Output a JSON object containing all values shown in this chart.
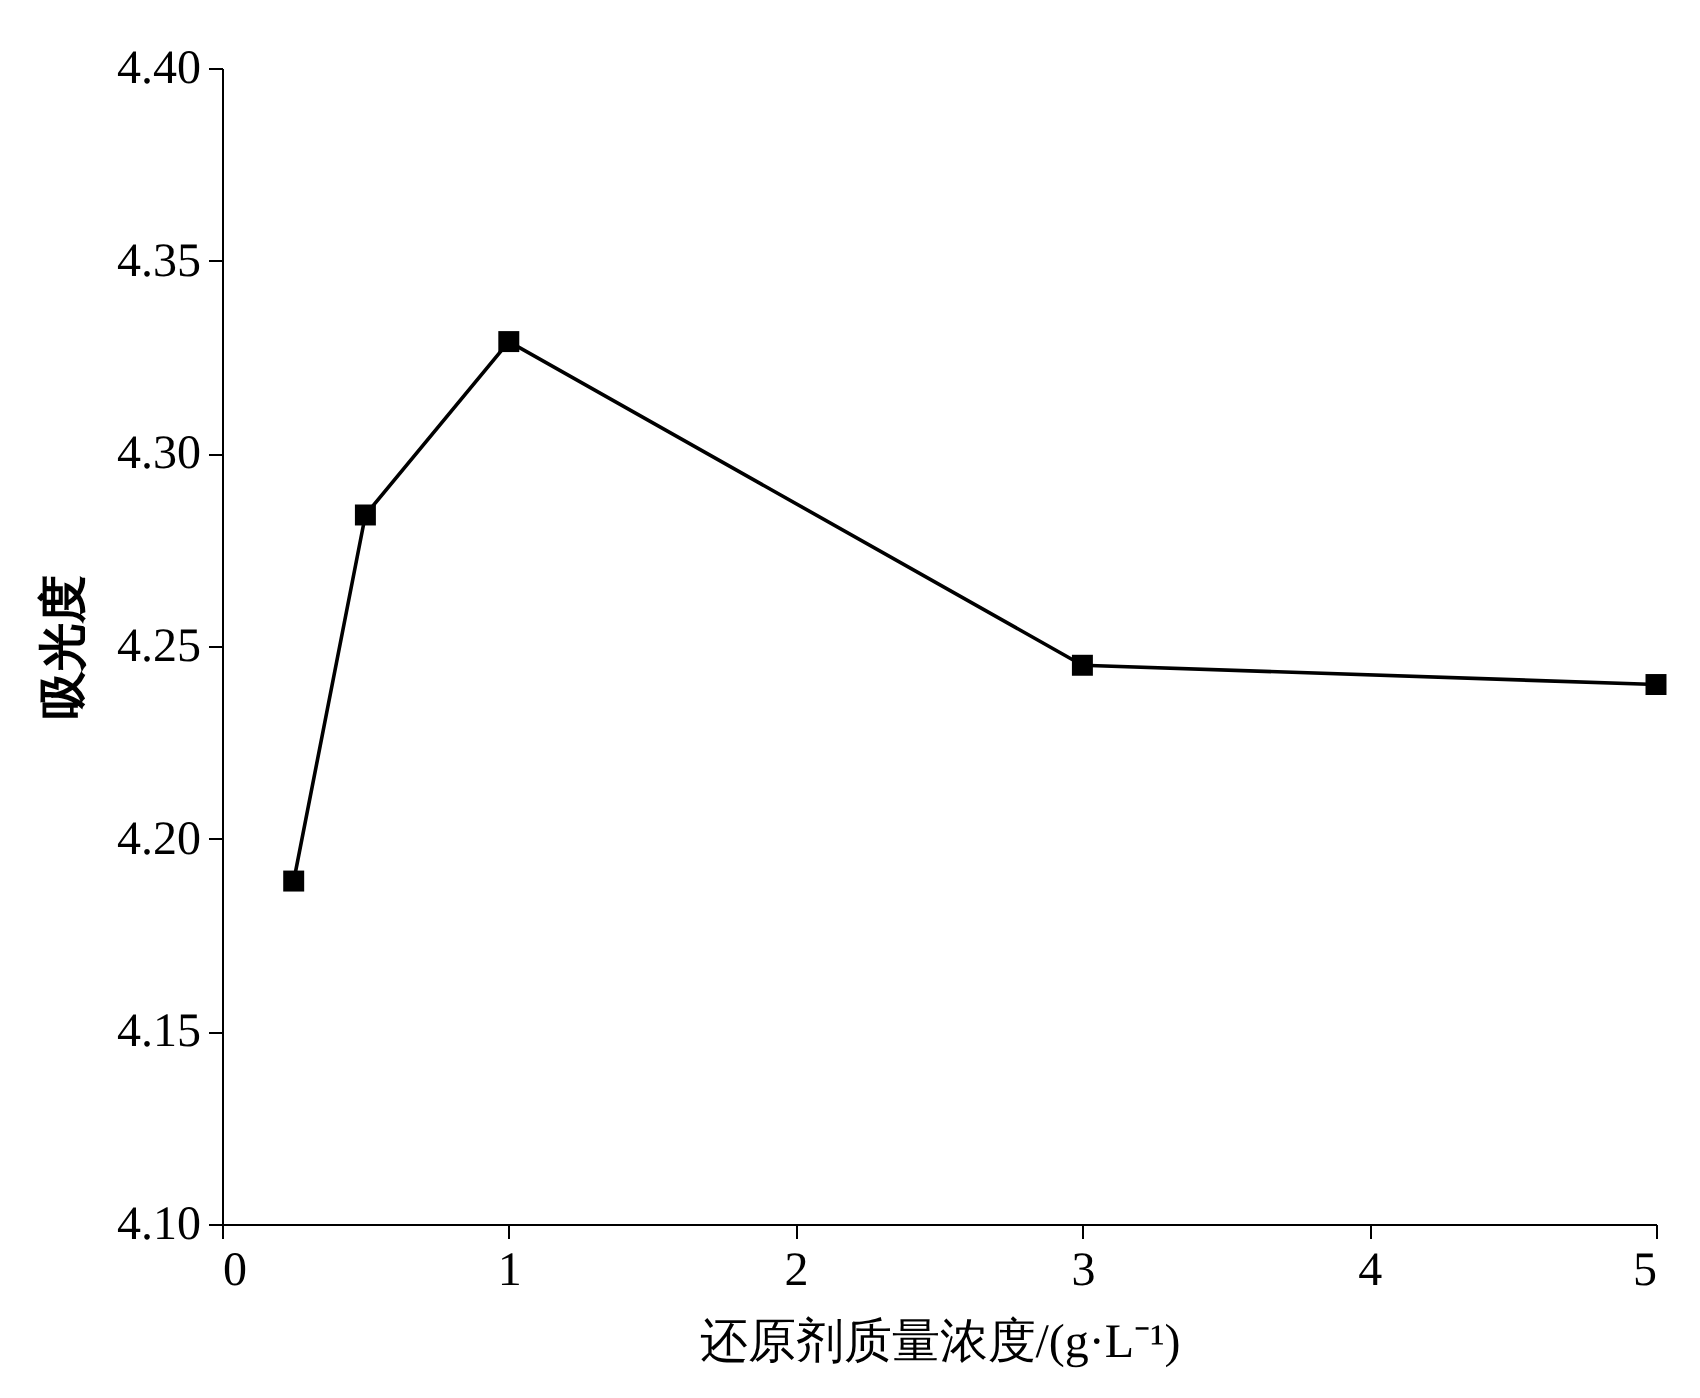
{
  "chart_data": {
    "type": "line",
    "xlabel": "还原剂质量浓度/(g·L⁻¹)",
    "ylabel": "吸光度",
    "x": [
      0.25,
      0.5,
      1,
      3,
      5
    ],
    "series": [
      {
        "color": "#000000",
        "values": [
          4.189,
          4.284,
          4.329,
          4.245,
          4.24
        ]
      }
    ],
    "xlim": [
      0,
      5
    ],
    "xticks": [
      0,
      1,
      2,
      3,
      4,
      5
    ],
    "ylim": [
      4.1,
      4.4
    ],
    "yticks": [
      {
        "value": 4.1,
        "label": "4.10"
      },
      {
        "value": 4.15,
        "label": "4.15"
      },
      {
        "value": 4.2,
        "label": "4.20"
      },
      {
        "value": 4.25,
        "label": "4.25"
      },
      {
        "value": 4.3,
        "label": "4.30"
      },
      {
        "value": 4.35,
        "label": "4.35"
      },
      {
        "value": 4.4,
        "label": "4.40"
      }
    ],
    "marker": "square",
    "line_style": "solid",
    "grid": false
  }
}
